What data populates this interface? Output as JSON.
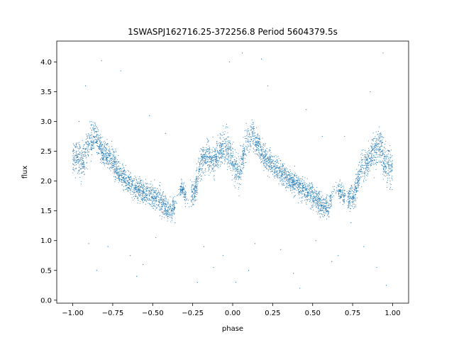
{
  "chart_data": {
    "type": "scatter",
    "title": "1SWASPJ162716.25-372256.8 Period 5604379.5s",
    "xlabel": "phase",
    "ylabel": "flux",
    "xlim": [
      -1.1,
      1.1
    ],
    "ylim": [
      -0.05,
      4.35
    ],
    "x_ticks": [
      -1.0,
      -0.75,
      -0.5,
      -0.25,
      0.0,
      0.25,
      0.5,
      0.75,
      1.0
    ],
    "x_tick_labels": [
      "−1.00",
      "−0.75",
      "−0.50",
      "−0.25",
      "0.00",
      "0.25",
      "0.50",
      "0.75",
      "1.00"
    ],
    "y_ticks": [
      0.0,
      0.5,
      1.0,
      1.5,
      2.0,
      2.5,
      3.0,
      3.5,
      4.0
    ],
    "y_tick_labels": [
      "0.0",
      "0.5",
      "1.0",
      "1.5",
      "2.0",
      "2.5",
      "3.0",
      "3.5",
      "4.0"
    ],
    "grid": false,
    "marker_color": "#1f77b4",
    "series": [
      {
        "x": [
          -0.98,
          -0.94,
          -0.9,
          -0.86,
          -0.82,
          -0.78,
          -0.74,
          -0.7,
          -0.66,
          -0.62,
          -0.58,
          -0.54,
          -0.5,
          -0.46,
          -0.42,
          -0.38,
          -0.32,
          -0.28,
          -0.24,
          -0.2,
          -0.16,
          -0.12,
          -0.08,
          -0.04,
          0.0,
          0.04,
          0.08,
          0.12,
          0.16,
          0.2,
          0.24,
          0.28,
          0.32,
          0.36,
          0.4,
          0.44,
          0.48,
          0.52,
          0.56,
          0.6,
          0.64,
          0.68,
          0.72,
          0.76,
          0.8,
          0.84,
          0.88,
          0.92,
          0.96,
          0.99
        ],
        "y": [
          2.4,
          2.3,
          2.6,
          2.8,
          2.5,
          2.4,
          2.3,
          2.1,
          2.0,
          1.9,
          1.85,
          1.8,
          1.75,
          1.7,
          1.55,
          1.5,
          1.9,
          1.7,
          1.8,
          2.3,
          2.4,
          2.35,
          2.5,
          2.6,
          2.3,
          2.1,
          2.6,
          2.8,
          2.6,
          2.4,
          2.3,
          2.2,
          2.1,
          2.0,
          1.95,
          1.85,
          1.8,
          1.7,
          1.6,
          1.55,
          1.9,
          1.8,
          1.7,
          1.75,
          2.2,
          2.3,
          2.5,
          2.6,
          2.3,
          2.2
        ],
        "spread": [
          0.6,
          0.5,
          0.6,
          0.4,
          0.4,
          0.4,
          0.4,
          0.35,
          0.35,
          0.35,
          0.35,
          0.35,
          0.35,
          0.4,
          0.35,
          0.3,
          0.2,
          0.35,
          0.4,
          0.45,
          0.45,
          0.5,
          0.5,
          0.6,
          0.5,
          0.5,
          0.5,
          0.4,
          0.4,
          0.4,
          0.35,
          0.35,
          0.35,
          0.35,
          0.35,
          0.35,
          0.35,
          0.35,
          0.35,
          0.35,
          0.2,
          0.3,
          0.35,
          0.4,
          0.45,
          0.45,
          0.5,
          0.6,
          0.6,
          0.55
        ]
      }
    ],
    "outliers": [
      {
        "x": -0.92,
        "y": 3.6
      },
      {
        "x": -0.9,
        "y": 0.95
      },
      {
        "x": -0.85,
        "y": 0.5
      },
      {
        "x": -0.82,
        "y": 4.02
      },
      {
        "x": -0.78,
        "y": 0.9
      },
      {
        "x": -0.7,
        "y": 3.85
      },
      {
        "x": -0.64,
        "y": 0.75
      },
      {
        "x": -0.6,
        "y": 0.4
      },
      {
        "x": -0.56,
        "y": 0.6
      },
      {
        "x": -0.52,
        "y": 3.1
      },
      {
        "x": -0.48,
        "y": 1.05
      },
      {
        "x": -0.42,
        "y": 2.8
      },
      {
        "x": -0.36,
        "y": 1.3
      },
      {
        "x": -0.22,
        "y": 0.3
      },
      {
        "x": -0.18,
        "y": 0.9
      },
      {
        "x": -0.12,
        "y": 0.55
      },
      {
        "x": -0.06,
        "y": 0.75
      },
      {
        "x": -0.02,
        "y": 4.0
      },
      {
        "x": 0.02,
        "y": 0.3
      },
      {
        "x": 0.06,
        "y": 4.15
      },
      {
        "x": 0.1,
        "y": 0.5
      },
      {
        "x": 0.14,
        "y": 0.95
      },
      {
        "x": 0.18,
        "y": 4.05
      },
      {
        "x": 0.22,
        "y": 3.6
      },
      {
        "x": 0.3,
        "y": 0.85
      },
      {
        "x": 0.38,
        "y": 0.45
      },
      {
        "x": 0.42,
        "y": 0.2
      },
      {
        "x": 0.46,
        "y": 3.2
      },
      {
        "x": 0.52,
        "y": 1.0
      },
      {
        "x": 0.56,
        "y": 2.75
      },
      {
        "x": 0.62,
        "y": 0.65
      },
      {
        "x": 0.66,
        "y": 0.75
      },
      {
        "x": 0.74,
        "y": 1.3
      },
      {
        "x": 0.82,
        "y": 0.9
      },
      {
        "x": 0.86,
        "y": 3.5
      },
      {
        "x": 0.9,
        "y": 0.55
      },
      {
        "x": 0.94,
        "y": 4.15
      },
      {
        "x": 0.96,
        "y": 0.25
      },
      {
        "x": -0.96,
        "y": 3.0
      },
      {
        "x": 0.7,
        "y": 2.75
      }
    ]
  }
}
